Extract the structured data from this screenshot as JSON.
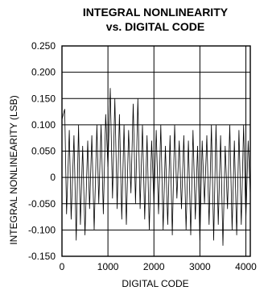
{
  "chart_data": {
    "type": "line",
    "title": [
      "INTEGRAL NONLINEARITY",
      "vs. DIGITAL CODE"
    ],
    "xlabel": "DIGITAL CODE",
    "ylabel": "INTEGRAL NONLINEARITY (LSB)",
    "xlim": [
      0,
      4096
    ],
    "ylim": [
      -0.15,
      0.25
    ],
    "x_ticks": [
      0,
      1000,
      2000,
      3000,
      4000
    ],
    "x_tick_labels": [
      "0",
      "1000",
      "2000",
      "3000",
      "4000"
    ],
    "y_ticks": [
      -0.15,
      -0.1,
      -0.05,
      0,
      0.05,
      0.1,
      0.15,
      0.2,
      0.25
    ],
    "y_tick_labels": [
      "-0.150",
      "-0.100",
      "-0.050",
      "0",
      "0.050",
      "0.100",
      "0.150",
      "0.200",
      "0.250"
    ],
    "grid": true,
    "series": [
      {
        "values": {
          "x": [
            0,
            60,
            100,
            160,
            200,
            260,
            310,
            360,
            400,
            450,
            500,
            560,
            600,
            650,
            700,
            760,
            800,
            850,
            900,
            950,
            1000,
            1050,
            1100,
            1150,
            1200,
            1250,
            1300,
            1350,
            1400,
            1450,
            1500,
            1550,
            1600,
            1650,
            1700,
            1750,
            1800,
            1850,
            1900,
            1950,
            2000,
            2050,
            2100,
            2150,
            2200,
            2250,
            2300,
            2350,
            2400,
            2450,
            2500,
            2550,
            2600,
            2650,
            2700,
            2750,
            2800,
            2850,
            2900,
            2950,
            3000,
            3050,
            3100,
            3150,
            3200,
            3250,
            3300,
            3350,
            3400,
            3450,
            3500,
            3550,
            3600,
            3650,
            3700,
            3750,
            3800,
            3850,
            3900,
            3950,
            4000,
            4050,
            4095
          ],
          "y": [
            0.11,
            0.13,
            -0.07,
            0.09,
            -0.08,
            0.08,
            -0.12,
            0.1,
            -0.09,
            0.06,
            -0.11,
            0.07,
            -0.06,
            0.08,
            -0.1,
            0.1,
            -0.05,
            0.1,
            -0.07,
            0.12,
            0.02,
            0.17,
            -0.04,
            0.15,
            -0.06,
            0.12,
            -0.08,
            0.1,
            -0.09,
            0.09,
            -0.03,
            0.14,
            -0.05,
            0.15,
            -0.06,
            0.1,
            -0.08,
            0.08,
            -0.1,
            0.07,
            -0.05,
            0.09,
            -0.07,
            0.1,
            -0.1,
            0.06,
            -0.09,
            0.08,
            -0.11,
            0.1,
            -0.04,
            0.07,
            -0.06,
            0.08,
            -0.1,
            0.07,
            -0.11,
            0.09,
            -0.08,
            0.06,
            -0.12,
            0.07,
            -0.05,
            0.08,
            -0.09,
            0.1,
            -0.12,
            0.1,
            -0.09,
            0.08,
            -0.13,
            0.06,
            -0.06,
            0.1,
            -0.1,
            0.07,
            -0.11,
            0.09,
            -0.09,
            0.1,
            -0.08,
            0.07,
            -0.03
          ]
        }
      }
    ]
  }
}
